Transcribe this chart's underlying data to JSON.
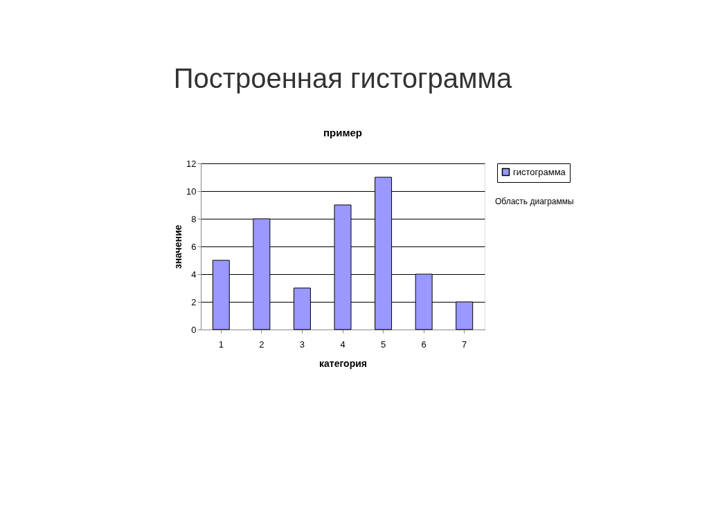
{
  "chart_data": {
    "type": "bar",
    "title": "Построенная гистограмма",
    "subtitle": "пример",
    "xlabel": "категория",
    "ylabel": "значение",
    "categories": [
      "1",
      "2",
      "3",
      "4",
      "5",
      "6",
      "7"
    ],
    "series": [
      {
        "name": "гистограмма",
        "color": "#9999ff",
        "values": [
          5,
          8,
          3,
          9,
          11,
          4,
          2
        ]
      }
    ],
    "ylim": [
      0,
      12
    ],
    "yticks": [
      0,
      2,
      4,
      6,
      8,
      10,
      12
    ],
    "grid": "y",
    "legend": "right",
    "annotations": [
      "Область диаграммы"
    ]
  }
}
